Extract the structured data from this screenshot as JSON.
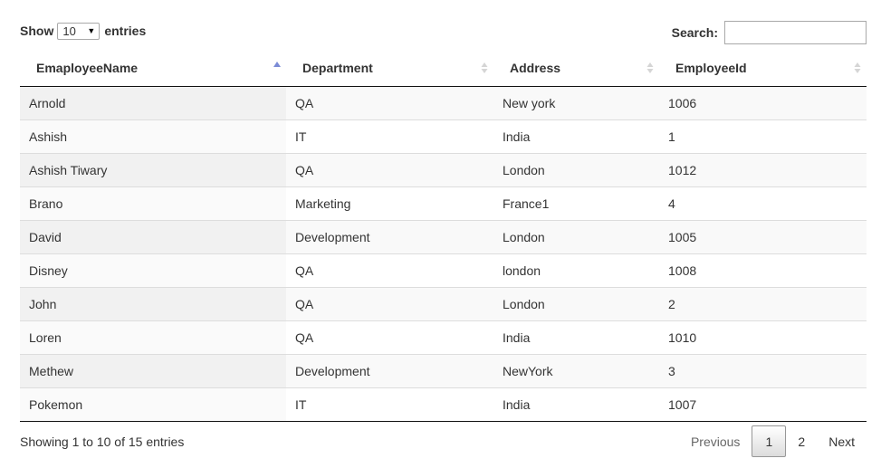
{
  "controls": {
    "show_label": "Show",
    "entries_label": "entries",
    "page_length": "10",
    "search_label": "Search:",
    "search_value": ""
  },
  "table": {
    "columns": [
      {
        "label": "EmaployeeName",
        "sort": "asc"
      },
      {
        "label": "Department",
        "sort": "none"
      },
      {
        "label": "Address",
        "sort": "none"
      },
      {
        "label": "EmployeeId",
        "sort": "none"
      }
    ],
    "rows": [
      [
        "Arnold",
        "QA",
        "New york",
        "1006"
      ],
      [
        "Ashish",
        "IT",
        "India",
        "1"
      ],
      [
        "Ashish Tiwary",
        "QA",
        "London",
        "1012"
      ],
      [
        "Brano",
        "Marketing",
        "France1",
        "4"
      ],
      [
        "David",
        "Development",
        "London",
        "1005"
      ],
      [
        "Disney",
        "QA",
        "london",
        "1008"
      ],
      [
        "John",
        "QA",
        "London",
        "2"
      ],
      [
        "Loren",
        "QA",
        "India",
        "1010"
      ],
      [
        "Methew",
        "Development",
        "NewYork",
        "3"
      ],
      [
        "Pokemon",
        "IT",
        "India",
        "1007"
      ]
    ]
  },
  "footer": {
    "info": "Showing 1 to 10 of 15 entries",
    "previous": "Previous",
    "pages": [
      "1",
      "2"
    ],
    "current_page": "1",
    "next": "Next"
  },
  "colors": {
    "sort_active": "#7b8bd6",
    "sort_inactive": "#d5d5d5"
  }
}
